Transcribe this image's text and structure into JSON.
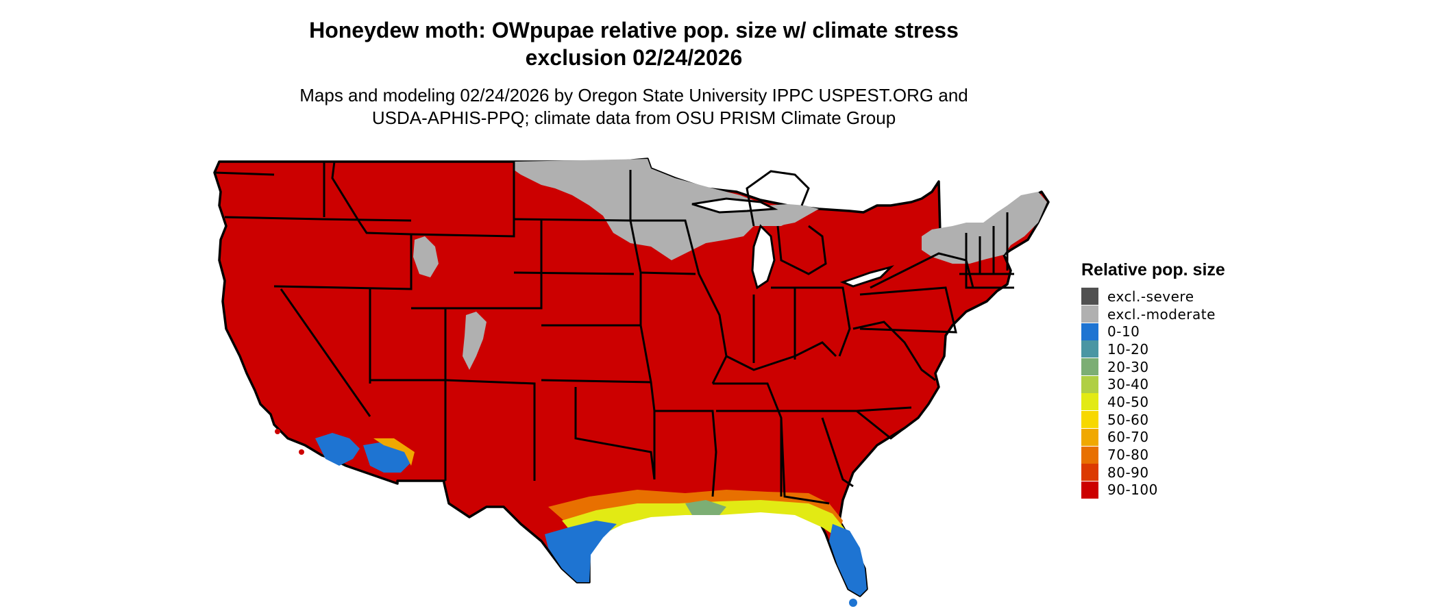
{
  "title_line1": "Honeydew moth: OWpupae relative pop. size w/ climate stress",
  "title_line2": "exclusion 02/24/2026",
  "subtitle_line1": "Maps and modeling 02/24/2026 by Oregon State University IPPC USPEST.ORG and",
  "subtitle_line2": "USDA-APHIS-PPQ; climate data from OSU PRISM Climate Group",
  "legend": {
    "title": "Relative pop. size",
    "items": [
      {
        "label": "excl.-severe",
        "color": "#505050"
      },
      {
        "label": "excl.-moderate",
        "color": "#b0b0b0"
      },
      {
        "label": "0-10",
        "color": "#1e74d2"
      },
      {
        "label": "10-20",
        "color": "#4a96a3"
      },
      {
        "label": "20-30",
        "color": "#7cae74"
      },
      {
        "label": "30-40",
        "color": "#b0cf44"
      },
      {
        "label": "40-50",
        "color": "#e2ea14"
      },
      {
        "label": "50-60",
        "color": "#f7d800"
      },
      {
        "label": "60-70",
        "color": "#f0a800"
      },
      {
        "label": "70-80",
        "color": "#e87000"
      },
      {
        "label": "80-90",
        "color": "#dc3a00"
      },
      {
        "label": "90-100",
        "color": "#cc0000"
      }
    ]
  },
  "map_colors": {
    "dominant": "#cc0000",
    "excluded": "#b0b0b0",
    "low": "#1e74d2",
    "borders": "#000000"
  }
}
